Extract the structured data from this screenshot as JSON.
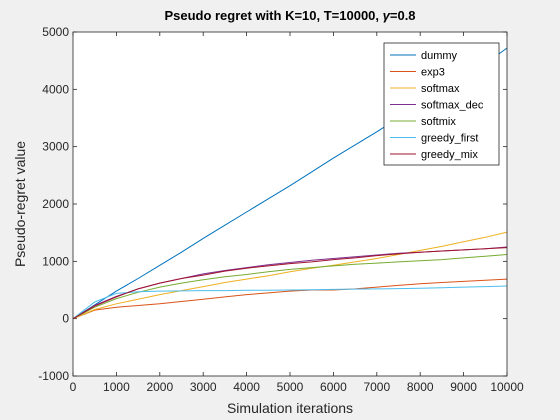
{
  "chart_data": {
    "type": "line",
    "title": "Pseudo regret with K=10, T=10000, γ=0.8",
    "title_prefix": "Pseudo regret with K=10, T=10000, ",
    "title_symbol": "γ",
    "title_suffix": "=0.8",
    "xlabel": "Simulation iterations",
    "ylabel": "Pseudo-regret value",
    "xlim": [
      0,
      10000
    ],
    "ylim": [
      -1000,
      5000
    ],
    "x_ticks": [
      "0",
      "1000",
      "2000",
      "3000",
      "4000",
      "5000",
      "6000",
      "7000",
      "8000",
      "9000",
      "10000"
    ],
    "y_ticks": [
      "-1000",
      "0",
      "1000",
      "2000",
      "3000",
      "4000",
      "5000"
    ],
    "grid": false,
    "legend_position": "top-right",
    "x": [
      0,
      500,
      1000,
      1500,
      2000,
      2500,
      3000,
      3500,
      4000,
      4500,
      5000,
      5500,
      6000,
      6500,
      7000,
      7500,
      8000,
      8500,
      9000,
      9500,
      10000
    ],
    "series": [
      {
        "name": "dummy",
        "color": "#0072bd",
        "values": [
          0,
          240,
          480,
          700,
          930,
          1160,
          1400,
          1630,
          1860,
          2090,
          2320,
          2560,
          2800,
          3030,
          3260,
          3500,
          3740,
          3980,
          4210,
          4450,
          4720
        ]
      },
      {
        "name": "exp3",
        "color": "#d95319",
        "values": [
          0,
          150,
          200,
          230,
          260,
          300,
          340,
          380,
          420,
          450,
          480,
          500,
          500,
          520,
          550,
          580,
          610,
          630,
          650,
          670,
          690
        ]
      },
      {
        "name": "softmax",
        "color": "#edb120",
        "values": [
          0,
          160,
          260,
          340,
          420,
          490,
          560,
          630,
          690,
          750,
          820,
          880,
          930,
          990,
          1050,
          1120,
          1190,
          1260,
          1340,
          1420,
          1510
        ]
      },
      {
        "name": "softmax_dec",
        "color": "#7e2f8e",
        "values": [
          0,
          230,
          390,
          520,
          620,
          700,
          780,
          840,
          890,
          940,
          980,
          1020,
          1050,
          1080,
          1110,
          1140,
          1160,
          1180,
          1200,
          1220,
          1250
        ]
      },
      {
        "name": "softmix",
        "color": "#77ac30",
        "values": [
          0,
          200,
          350,
          460,
          550,
          620,
          680,
          730,
          770,
          820,
          860,
          890,
          920,
          950,
          970,
          990,
          1010,
          1030,
          1060,
          1090,
          1120
        ]
      },
      {
        "name": "greedy_first",
        "color": "#4dbeee",
        "values": [
          0,
          290,
          440,
          470,
          480,
          485,
          490,
          490,
          495,
          495,
          500,
          505,
          510,
          515,
          520,
          525,
          530,
          540,
          550,
          560,
          570
        ]
      },
      {
        "name": "greedy_mix",
        "color": "#a2142f",
        "values": [
          0,
          220,
          380,
          520,
          620,
          700,
          760,
          830,
          880,
          920,
          960,
          990,
          1030,
          1060,
          1100,
          1130,
          1160,
          1180,
          1200,
          1220,
          1240
        ]
      }
    ]
  }
}
